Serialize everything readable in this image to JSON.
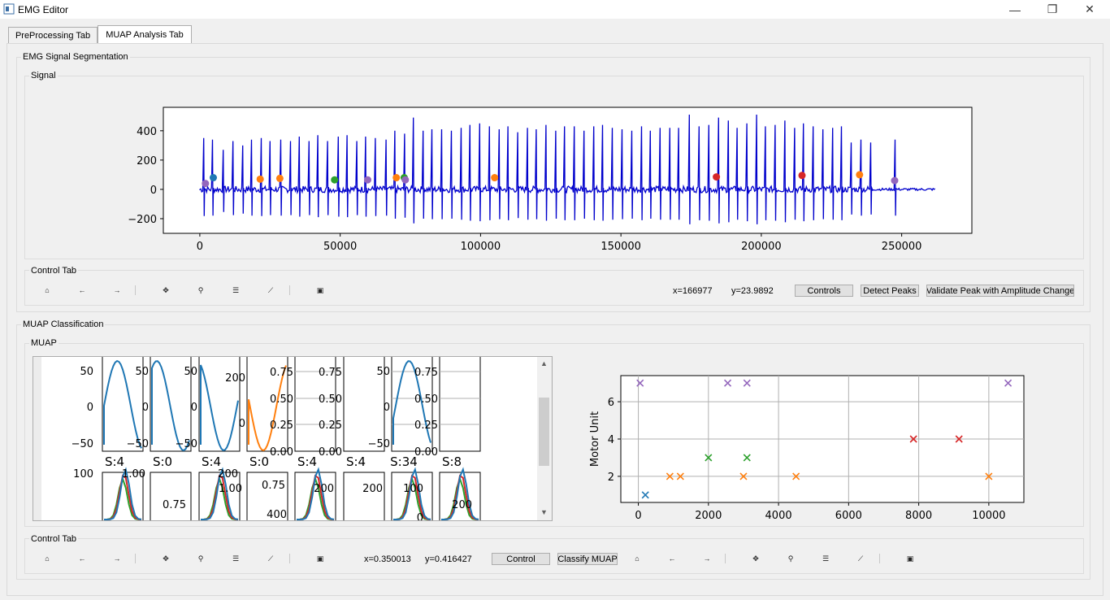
{
  "window": {
    "title": "EMG Editor",
    "minimize": "—",
    "restore": "❐",
    "close": "✕"
  },
  "tabs": [
    {
      "label": "PreProcessing Tab"
    },
    {
      "label": "MUAP Analysis Tab"
    }
  ],
  "segmentation": {
    "title": "EMG Signal Segmentation",
    "signal_title": "Signal",
    "chart_data": {
      "type": "line",
      "title": "",
      "xlim": [
        -13000,
        275000
      ],
      "ylim": [
        -300,
        560
      ],
      "xticks": [
        0,
        50000,
        100000,
        150000,
        200000,
        250000
      ],
      "xtick_labels": [
        "0",
        "50000",
        "100000",
        "150000",
        "200000",
        "250000"
      ],
      "yticks": [
        -200,
        0,
        200,
        400
      ],
      "ytick_labels": [
        "−200",
        "0",
        "200",
        "400"
      ],
      "line_color": "#0000cc",
      "spikes": [
        {
          "x": 1200,
          "y": 350
        },
        {
          "x": 4500,
          "y": 340
        },
        {
          "x": 8000,
          "y": 270
        },
        {
          "x": 11500,
          "y": 330
        },
        {
          "x": 15000,
          "y": 300
        },
        {
          "x": 18300,
          "y": 340
        },
        {
          "x": 21600,
          "y": 350
        },
        {
          "x": 25000,
          "y": 330
        },
        {
          "x": 28500,
          "y": 340
        },
        {
          "x": 32000,
          "y": 330
        },
        {
          "x": 35400,
          "y": 360
        },
        {
          "x": 38800,
          "y": 330
        },
        {
          "x": 42000,
          "y": 370
        },
        {
          "x": 45500,
          "y": 330
        },
        {
          "x": 49000,
          "y": 360
        },
        {
          "x": 52400,
          "y": 370
        },
        {
          "x": 55800,
          "y": 330
        },
        {
          "x": 59000,
          "y": 360
        },
        {
          "x": 62500,
          "y": 350
        },
        {
          "x": 66000,
          "y": 340
        },
        {
          "x": 69300,
          "y": 400
        },
        {
          "x": 72600,
          "y": 380
        },
        {
          "x": 75800,
          "y": 490
        },
        {
          "x": 79200,
          "y": 400
        },
        {
          "x": 82600,
          "y": 410
        },
        {
          "x": 86000,
          "y": 410
        },
        {
          "x": 89400,
          "y": 400
        },
        {
          "x": 92800,
          "y": 420
        },
        {
          "x": 96100,
          "y": 440
        },
        {
          "x": 99500,
          "y": 450
        },
        {
          "x": 102900,
          "y": 430
        },
        {
          "x": 106300,
          "y": 410
        },
        {
          "x": 109600,
          "y": 430
        },
        {
          "x": 113000,
          "y": 390
        },
        {
          "x": 116400,
          "y": 420
        },
        {
          "x": 119800,
          "y": 410
        },
        {
          "x": 123200,
          "y": 440
        },
        {
          "x": 126500,
          "y": 400
        },
        {
          "x": 129900,
          "y": 430
        },
        {
          "x": 133300,
          "y": 430
        },
        {
          "x": 136700,
          "y": 400
        },
        {
          "x": 140100,
          "y": 430
        },
        {
          "x": 143400,
          "y": 440
        },
        {
          "x": 146800,
          "y": 420
        },
        {
          "x": 150200,
          "y": 410
        },
        {
          "x": 153600,
          "y": 400
        },
        {
          "x": 157000,
          "y": 430
        },
        {
          "x": 160300,
          "y": 400
        },
        {
          "x": 163700,
          "y": 420
        },
        {
          "x": 167100,
          "y": 420
        },
        {
          "x": 170500,
          "y": 420
        },
        {
          "x": 174300,
          "y": 510
        },
        {
          "x": 177800,
          "y": 430
        },
        {
          "x": 181200,
          "y": 440
        },
        {
          "x": 184500,
          "y": 490
        },
        {
          "x": 188000,
          "y": 470
        },
        {
          "x": 191300,
          "y": 420
        },
        {
          "x": 194700,
          "y": 450
        },
        {
          "x": 198000,
          "y": 510
        },
        {
          "x": 201400,
          "y": 430
        },
        {
          "x": 204800,
          "y": 440
        },
        {
          "x": 208200,
          "y": 470
        },
        {
          "x": 211600,
          "y": 420
        },
        {
          "x": 215000,
          "y": 450
        },
        {
          "x": 218400,
          "y": 430
        },
        {
          "x": 221800,
          "y": 410
        },
        {
          "x": 225100,
          "y": 420
        },
        {
          "x": 228500,
          "y": 430
        },
        {
          "x": 232000,
          "y": 320
        },
        {
          "x": 235400,
          "y": 340
        },
        {
          "x": 238800,
          "y": 320
        },
        {
          "x": 247500,
          "y": 340
        }
      ],
      "markers": [
        {
          "x": 2000,
          "y": 40,
          "color": "#9467bd"
        },
        {
          "x": 4800,
          "y": 80,
          "color": "#1f77b4"
        },
        {
          "x": 21500,
          "y": 70,
          "color": "#ff7f0e"
        },
        {
          "x": 28500,
          "y": 75,
          "color": "#ff7f0e"
        },
        {
          "x": 48000,
          "y": 65,
          "color": "#2ca02c"
        },
        {
          "x": 59800,
          "y": 65,
          "color": "#9467bd"
        },
        {
          "x": 70000,
          "y": 80,
          "color": "#ff7f0e"
        },
        {
          "x": 72800,
          "y": 80,
          "color": "#2ca02c"
        },
        {
          "x": 73200,
          "y": 65,
          "color": "#9467bd"
        },
        {
          "x": 105000,
          "y": 80,
          "color": "#ff7f0e"
        },
        {
          "x": 184000,
          "y": 85,
          "color": "#d62728"
        },
        {
          "x": 214500,
          "y": 95,
          "color": "#d62728"
        },
        {
          "x": 235000,
          "y": 100,
          "color": "#ff7f0e"
        },
        {
          "x": 247500,
          "y": 60,
          "color": "#9467bd"
        }
      ],
      "baseline_end": 262000
    },
    "control_title": "Control Tab",
    "toolbar_icons": [
      "home-icon",
      "back-icon",
      "forward-icon",
      "pan-icon",
      "zoom-icon",
      "configure-icon",
      "edit-axes-icon",
      "save-icon"
    ],
    "toolbar_glyphs": [
      "⌂",
      "←",
      "→",
      "✥",
      "⚲",
      "☰",
      "⟋",
      "▣"
    ],
    "coord_x": "x=166977",
    "coord_y": "y=23.9892",
    "buttons": {
      "controls": "Controls",
      "detect": "Detect Peaks",
      "validate": "Validate Peak with Amplitude Change"
    }
  },
  "classification": {
    "title": "MUAP Classification",
    "muap_title": "MUAP",
    "subplots_row1": [
      {
        "yticks": [
          "50",
          "0",
          "−50"
        ]
      },
      {
        "yticks": [
          "50",
          "0",
          "−50"
        ]
      },
      {
        "yticks": [
          "50",
          "0",
          "−50"
        ]
      },
      {
        "yticks": [
          "200",
          "0"
        ]
      },
      {
        "yticks": [
          "0.75",
          "0.50",
          "0.25",
          "0.00"
        ]
      },
      {
        "yticks": [
          "0.75",
          "0.50",
          "0.25",
          "0.00"
        ]
      },
      {
        "yticks": [
          "50",
          "0",
          "−50"
        ]
      },
      {
        "yticks": [
          "0.75",
          "0.50",
          "0.25",
          "0.00"
        ]
      },
      {
        "yticks": []
      }
    ],
    "subplot_titles": [
      "S:4",
      "S:0",
      "S:4",
      "S:0",
      "S:4",
      "S:4",
      "S:34",
      "S:8"
    ],
    "subplots_row2_labels": [
      "100",
      "1.00",
      "0.75",
      "200",
      "1.00",
      "0.75",
      "400",
      "200",
      "200",
      "100",
      "0",
      "200"
    ],
    "scatter": {
      "chart_data": {
        "type": "scatter",
        "title": "",
        "xlabel": "",
        "ylabel": "Motor Unit",
        "xlim": [
          -500,
          11000
        ],
        "ylim": [
          0.6,
          7.4
        ],
        "xticks": [
          0,
          2000,
          4000,
          6000,
          8000,
          10000
        ],
        "xtick_labels": [
          "0",
          "2000",
          "4000",
          "6000",
          "8000",
          "10000"
        ],
        "yticks": [
          2,
          4,
          6
        ],
        "ytick_labels": [
          "2",
          "4",
          "6"
        ],
        "grid": true,
        "points": [
          {
            "x": 50,
            "y": 7,
            "color": "#9467bd"
          },
          {
            "x": 2550,
            "y": 7,
            "color": "#9467bd"
          },
          {
            "x": 3100,
            "y": 7,
            "color": "#9467bd"
          },
          {
            "x": 10550,
            "y": 7,
            "color": "#9467bd"
          },
          {
            "x": 7850,
            "y": 4,
            "color": "#d62728"
          },
          {
            "x": 9150,
            "y": 4,
            "color": "#d62728"
          },
          {
            "x": 2000,
            "y": 3,
            "color": "#2ca02c"
          },
          {
            "x": 3100,
            "y": 3,
            "color": "#2ca02c"
          },
          {
            "x": 900,
            "y": 2,
            "color": "#ff7f0e"
          },
          {
            "x": 1200,
            "y": 2,
            "color": "#ff7f0e"
          },
          {
            "x": 3000,
            "y": 2,
            "color": "#ff7f0e"
          },
          {
            "x": 4500,
            "y": 2,
            "color": "#ff7f0e"
          },
          {
            "x": 10000,
            "y": 2,
            "color": "#ff7f0e"
          },
          {
            "x": 200,
            "y": 1,
            "color": "#1f77b4"
          }
        ]
      }
    },
    "control_title": "Control Tab",
    "coord_x": "x=0.350013",
    "coord_y": "y=0.416427",
    "buttons": {
      "control": "Control",
      "classify": "Classify MUAP"
    }
  }
}
